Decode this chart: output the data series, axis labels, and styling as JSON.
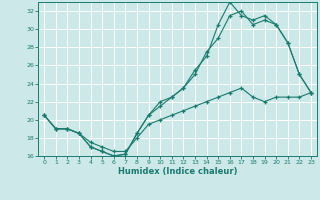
{
  "xlabel": "Humidex (Indice chaleur)",
  "bg_color": "#cce8e8",
  "grid_color": "#ffffff",
  "line_color": "#1a7a6e",
  "xlim": [
    -0.5,
    23.5
  ],
  "ylim": [
    16,
    33
  ],
  "xticks": [
    0,
    1,
    2,
    3,
    4,
    5,
    6,
    7,
    8,
    9,
    10,
    11,
    12,
    13,
    14,
    15,
    16,
    17,
    18,
    19,
    20,
    21,
    22,
    23
  ],
  "yticks": [
    16,
    18,
    20,
    22,
    24,
    26,
    28,
    30,
    32
  ],
  "line1_x": [
    0,
    1,
    2,
    3,
    4,
    5,
    6,
    7,
    8,
    9,
    10,
    11,
    12,
    13,
    14,
    15,
    16,
    17,
    18,
    19,
    20,
    21,
    22,
    23
  ],
  "line1_y": [
    20.5,
    19.0,
    19.0,
    18.5,
    17.0,
    16.5,
    16.0,
    16.2,
    18.5,
    20.5,
    22.0,
    22.5,
    23.5,
    25.5,
    27.0,
    30.5,
    33.0,
    31.5,
    31.0,
    31.5,
    30.5,
    28.5,
    25.0,
    23.0
  ],
  "line2_x": [
    0,
    1,
    2,
    3,
    4,
    5,
    6,
    7,
    8,
    9,
    10,
    11,
    12,
    13,
    14,
    15,
    16,
    17,
    18,
    19,
    20,
    21,
    22,
    23
  ],
  "line2_y": [
    20.5,
    19.0,
    19.0,
    18.5,
    17.0,
    16.5,
    16.0,
    16.2,
    18.5,
    20.5,
    21.5,
    22.5,
    23.5,
    25.0,
    27.5,
    29.0,
    31.5,
    32.0,
    30.5,
    31.0,
    30.5,
    28.5,
    25.0,
    23.0
  ],
  "line3_x": [
    0,
    1,
    2,
    3,
    4,
    5,
    6,
    7,
    8,
    9,
    10,
    11,
    12,
    13,
    14,
    15,
    16,
    17,
    18,
    19,
    20,
    21,
    22,
    23
  ],
  "line3_y": [
    20.5,
    19.0,
    19.0,
    18.5,
    17.5,
    17.0,
    16.5,
    16.5,
    18.0,
    19.5,
    20.0,
    20.5,
    21.0,
    21.5,
    22.0,
    22.5,
    23.0,
    23.5,
    22.5,
    22.0,
    22.5,
    22.5,
    22.5,
    23.0
  ]
}
